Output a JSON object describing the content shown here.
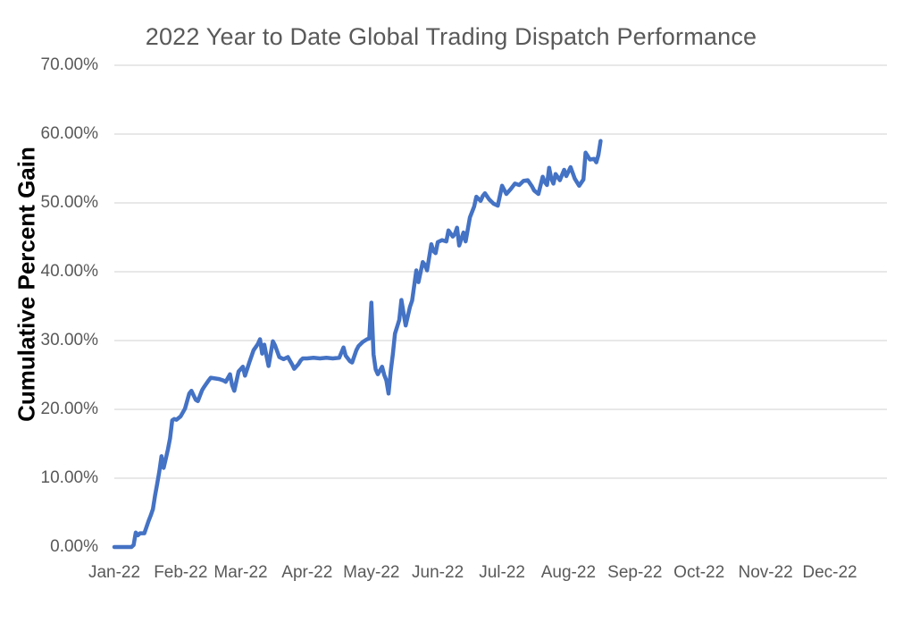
{
  "chart_data": {
    "type": "line",
    "title": "2022 Year to Date Global Trading Dispatch Performance",
    "xlabel": "",
    "ylabel": "Cumulative Percent Gain",
    "ylim": [
      0,
      70
    ],
    "grid": "horizontal gridlines at 10%-70%, none at 0%",
    "legend": "none",
    "colors": {
      "line": "#4472C4",
      "grid": "#D9D9D9",
      "tick_text": "#595959",
      "title_text": "#595959",
      "axis_title_text": "#000000",
      "background": "#FFFFFF"
    },
    "y_ticks": [
      {
        "label": "70.00%",
        "value": 70
      },
      {
        "label": "60.00%",
        "value": 60
      },
      {
        "label": "50.00%",
        "value": 50
      },
      {
        "label": "40.00%",
        "value": 40
      },
      {
        "label": "30.00%",
        "value": 30
      },
      {
        "label": "20.00%",
        "value": 20
      },
      {
        "label": "10.00%",
        "value": 10
      },
      {
        "label": "0.00%",
        "value": 0
      }
    ],
    "x_ticks": [
      {
        "label": "Jan-22",
        "day": 0
      },
      {
        "label": "Feb-22",
        "day": 31
      },
      {
        "label": "Mar-22",
        "day": 59
      },
      {
        "label": "Apr-22",
        "day": 90
      },
      {
        "label": "May-22",
        "day": 120
      },
      {
        "label": "Jun-22",
        "day": 151
      },
      {
        "label": "Jul-22",
        "day": 181
      },
      {
        "label": "Aug-22",
        "day": 212
      },
      {
        "label": "Sep-22",
        "day": 243
      },
      {
        "label": "Oct-22",
        "day": 273
      },
      {
        "label": "Nov-22",
        "day": 304
      },
      {
        "label": "Dec-22",
        "day": 334
      }
    ],
    "series": [
      {
        "name": "Cumulative Percent Gain",
        "units": "percent, day offset from Jan 1 2022",
        "points": [
          [
            0,
            0
          ],
          [
            2,
            0
          ],
          [
            4,
            0
          ],
          [
            6,
            0
          ],
          [
            8,
            0
          ],
          [
            9,
            0.3
          ],
          [
            10,
            2.1
          ],
          [
            11,
            1.7
          ],
          [
            12,
            2.0
          ],
          [
            14,
            2.0
          ],
          [
            16,
            3.8
          ],
          [
            17,
            4.6
          ],
          [
            18,
            5.5
          ],
          [
            19,
            7.5
          ],
          [
            20,
            9.2
          ],
          [
            21,
            11.0
          ],
          [
            22,
            13.2
          ],
          [
            23,
            11.5
          ],
          [
            24,
            12.8
          ],
          [
            25,
            14.2
          ],
          [
            26,
            15.8
          ],
          [
            27,
            18.4
          ],
          [
            28,
            18.6
          ],
          [
            29,
            18.5
          ],
          [
            31,
            19.0
          ],
          [
            33,
            20.1
          ],
          [
            35,
            22.3
          ],
          [
            36,
            22.7
          ],
          [
            38,
            21.4
          ],
          [
            39,
            21.2
          ],
          [
            41,
            22.8
          ],
          [
            42,
            23.3
          ],
          [
            44,
            24.2
          ],
          [
            45,
            24.6
          ],
          [
            47,
            24.5
          ],
          [
            49,
            24.4
          ],
          [
            51,
            24.2
          ],
          [
            52,
            24.0
          ],
          [
            54,
            25.1
          ],
          [
            55,
            23.5
          ],
          [
            56,
            22.7
          ],
          [
            58,
            25.5
          ],
          [
            60,
            26.2
          ],
          [
            61,
            24.9
          ],
          [
            63,
            26.8
          ],
          [
            65,
            28.6
          ],
          [
            67,
            29.5
          ],
          [
            68,
            30.2
          ],
          [
            69,
            28.1
          ],
          [
            70,
            29.4
          ],
          [
            71,
            27.8
          ],
          [
            72,
            26.3
          ],
          [
            74,
            29.9
          ],
          [
            75,
            29.3
          ],
          [
            77,
            27.6
          ],
          [
            79,
            27.3
          ],
          [
            81,
            27.6
          ],
          [
            83,
            26.5
          ],
          [
            84,
            25.9
          ],
          [
            86,
            26.6
          ],
          [
            87,
            27.1
          ],
          [
            88,
            27.4
          ],
          [
            90,
            27.4
          ],
          [
            93,
            27.5
          ],
          [
            96,
            27.4
          ],
          [
            99,
            27.5
          ],
          [
            102,
            27.4
          ],
          [
            105,
            27.5
          ],
          [
            107,
            29.0
          ],
          [
            108,
            27.8
          ],
          [
            110,
            27.0
          ],
          [
            111,
            26.8
          ],
          [
            113,
            28.6
          ],
          [
            114,
            29.2
          ],
          [
            116,
            29.8
          ],
          [
            118,
            30.2
          ],
          [
            119,
            30.3
          ],
          [
            120,
            35.5
          ],
          [
            121,
            28.0
          ],
          [
            122,
            25.8
          ],
          [
            123,
            25.1
          ],
          [
            125,
            26.2
          ],
          [
            126,
            25.0
          ],
          [
            127,
            24.2
          ],
          [
            128,
            22.3
          ],
          [
            129,
            25.5
          ],
          [
            130,
            28.0
          ],
          [
            131,
            31.0
          ],
          [
            133,
            33.0
          ],
          [
            134,
            35.9
          ],
          [
            135,
            34.0
          ],
          [
            136,
            32.2
          ],
          [
            138,
            34.9
          ],
          [
            139,
            35.8
          ],
          [
            141,
            40.2
          ],
          [
            142,
            38.5
          ],
          [
            144,
            41.4
          ],
          [
            145,
            41.0
          ],
          [
            146,
            40.2
          ],
          [
            148,
            44.0
          ],
          [
            149,
            43.0
          ],
          [
            150,
            42.7
          ],
          [
            151,
            44.3
          ],
          [
            153,
            44.6
          ],
          [
            155,
            44.4
          ],
          [
            156,
            46.0
          ],
          [
            158,
            45.1
          ],
          [
            159,
            45.5
          ],
          [
            160,
            46.4
          ],
          [
            161,
            43.8
          ],
          [
            163,
            45.7
          ],
          [
            164,
            44.4
          ],
          [
            166,
            47.9
          ],
          [
            168,
            49.5
          ],
          [
            169,
            50.9
          ],
          [
            171,
            50.3
          ],
          [
            172,
            51.0
          ],
          [
            173,
            51.4
          ],
          [
            175,
            50.5
          ],
          [
            177,
            49.9
          ],
          [
            179,
            49.6
          ],
          [
            181,
            52.5
          ],
          [
            183,
            51.3
          ],
          [
            185,
            52.0
          ],
          [
            187,
            52.8
          ],
          [
            189,
            52.6
          ],
          [
            191,
            53.2
          ],
          [
            193,
            53.3
          ],
          [
            195,
            52.4
          ],
          [
            196,
            51.8
          ],
          [
            198,
            51.3
          ],
          [
            200,
            53.8
          ],
          [
            201,
            53.0
          ],
          [
            202,
            52.6
          ],
          [
            203,
            55.1
          ],
          [
            204,
            53.5
          ],
          [
            205,
            52.8
          ],
          [
            206,
            54.2
          ],
          [
            208,
            53.3
          ],
          [
            210,
            54.8
          ],
          [
            211,
            53.9
          ],
          [
            213,
            55.2
          ],
          [
            215,
            53.5
          ],
          [
            217,
            52.5
          ],
          [
            219,
            53.4
          ],
          [
            220,
            57.3
          ],
          [
            221,
            56.8
          ],
          [
            222,
            56.3
          ],
          [
            224,
            56.4
          ],
          [
            225,
            55.9
          ],
          [
            226,
            57.0
          ],
          [
            227,
            59.0
          ]
        ]
      }
    ]
  }
}
